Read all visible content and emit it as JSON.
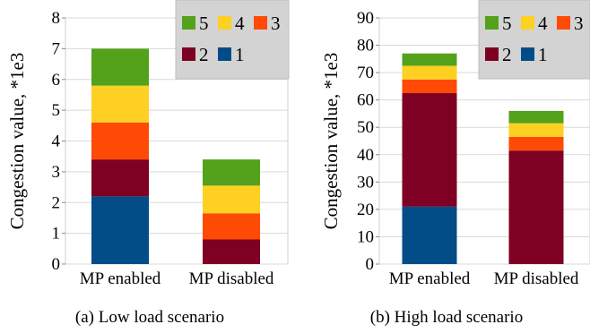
{
  "chart_data": [
    {
      "type": "bar",
      "stacked": true,
      "caption": "(a) Low load scenario",
      "ylabel": "Congestion value, *1e3",
      "ylim": [
        0,
        8
      ],
      "yticks": [
        "0",
        "1",
        "2",
        "3",
        "4",
        "5",
        "6",
        "7",
        "8"
      ],
      "categories": [
        "MP enabled",
        "MP disabled"
      ],
      "legend_labels": [
        "5",
        "4",
        "3",
        "2",
        "1"
      ],
      "series": [
        {
          "name": "1",
          "color": "#024C88",
          "values": [
            2.2,
            0
          ]
        },
        {
          "name": "2",
          "color": "#7E0023",
          "values": [
            1.2,
            0.8
          ]
        },
        {
          "name": "3",
          "color": "#FE4A04",
          "values": [
            1.2,
            0.85
          ]
        },
        {
          "name": "4",
          "color": "#FDD021",
          "values": [
            1.2,
            0.9
          ]
        },
        {
          "name": "5",
          "color": "#54A11C",
          "values": [
            1.2,
            0.85
          ]
        }
      ],
      "grid": "horizontal",
      "legend_position": "top-right"
    },
    {
      "type": "bar",
      "stacked": true,
      "caption": "(b) High load scenario",
      "ylabel": "Congestion value, *1e3",
      "ylim": [
        0,
        90
      ],
      "yticks": [
        "0",
        "10",
        "20",
        "30",
        "40",
        "50",
        "60",
        "70",
        "80",
        "90"
      ],
      "categories": [
        "MP enabled",
        "MP disabled"
      ],
      "legend_labels": [
        "5",
        "4",
        "3",
        "2",
        "1"
      ],
      "series": [
        {
          "name": "1",
          "color": "#024C88",
          "values": [
            21,
            0
          ]
        },
        {
          "name": "2",
          "color": "#7E0023",
          "values": [
            41.5,
            41.5
          ]
        },
        {
          "name": "3",
          "color": "#FE4A04",
          "values": [
            5,
            5
          ]
        },
        {
          "name": "4",
          "color": "#FDD021",
          "values": [
            5,
            5
          ]
        },
        {
          "name": "5",
          "color": "#54A11C",
          "values": [
            4.5,
            4.5
          ]
        }
      ],
      "grid": "horizontal",
      "legend_position": "top-right"
    }
  ]
}
